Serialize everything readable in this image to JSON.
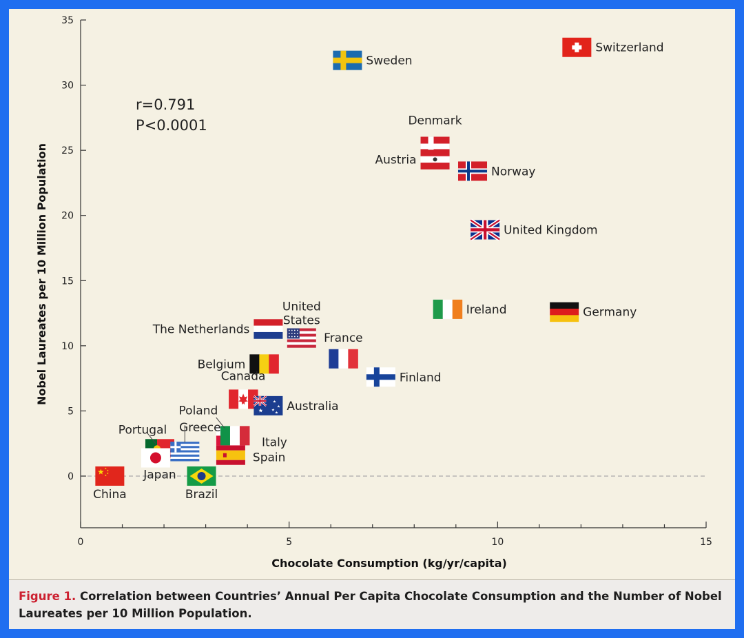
{
  "chart_data": {
    "type": "scatter",
    "xlabel": "Chocolate Consumption (kg/yr/capita)",
    "ylabel": "Nobel Laureates per 10 Million Population",
    "xlim": [
      0,
      15
    ],
    "ylim": [
      -4,
      35
    ],
    "xticks": [
      0,
      5,
      10,
      15
    ],
    "yticks": [
      0,
      5,
      10,
      15,
      20,
      25,
      30,
      35
    ],
    "reference_line_y": 0,
    "stats": {
      "r": "r=0.791",
      "p": "P<0.0001"
    },
    "points": [
      {
        "name": "Switzerland",
        "label": [
          "Switzerland"
        ],
        "x": 11.9,
        "y": 32.9,
        "flag": "switzerland"
      },
      {
        "name": "Sweden",
        "label": [
          "Sweden"
        ],
        "x": 6.4,
        "y": 31.9,
        "flag": "sweden"
      },
      {
        "name": "Denmark",
        "label": [
          "Denmark"
        ],
        "x": 8.5,
        "y": 25.3,
        "flag": "denmark"
      },
      {
        "name": "Austria",
        "label": [
          "Austria"
        ],
        "x": 8.5,
        "y": 24.3,
        "flag": "austria"
      },
      {
        "name": "Norway",
        "label": [
          "Norway"
        ],
        "x": 9.4,
        "y": 23.4,
        "flag": "norway"
      },
      {
        "name": "United Kingdom",
        "label": [
          "United Kingdom"
        ],
        "x": 9.7,
        "y": 18.9,
        "flag": "uk"
      },
      {
        "name": "Ireland",
        "label": [
          "Ireland"
        ],
        "x": 8.8,
        "y": 12.8,
        "flag": "ireland"
      },
      {
        "name": "Germany",
        "label": [
          "Germany"
        ],
        "x": 11.6,
        "y": 12.6,
        "flag": "germany"
      },
      {
        "name": "The Netherlands",
        "label": [
          "The Netherlands"
        ],
        "x": 4.5,
        "y": 11.3,
        "flag": "netherlands"
      },
      {
        "name": "United States",
        "label": [
          "United",
          "States"
        ],
        "x": 5.3,
        "y": 10.6,
        "flag": "usa"
      },
      {
        "name": "France",
        "label": [
          "France"
        ],
        "x": 6.3,
        "y": 9.0,
        "flag": "france"
      },
      {
        "name": "Belgium",
        "label": [
          "Belgium"
        ],
        "x": 4.4,
        "y": 8.6,
        "flag": "belgium"
      },
      {
        "name": "Finland",
        "label": [
          "Finland"
        ],
        "x": 7.2,
        "y": 7.6,
        "flag": "finland"
      },
      {
        "name": "Canada",
        "label": [
          "Canada"
        ],
        "x": 3.9,
        "y": 5.9,
        "flag": "canada"
      },
      {
        "name": "Australia",
        "label": [
          "Australia"
        ],
        "x": 4.5,
        "y": 5.4,
        "flag": "australia"
      },
      {
        "name": "Poland",
        "label": [
          "Poland"
        ],
        "x": 3.6,
        "y": 3.1,
        "flag": "poland"
      },
      {
        "name": "Italy",
        "label": [
          "Italy"
        ],
        "x": 3.7,
        "y": 3.1,
        "flag": "italy"
      },
      {
        "name": "Portugal",
        "label": [
          "Portugal"
        ],
        "x": 1.9,
        "y": 2.1,
        "flag": "portugal"
      },
      {
        "name": "Greece",
        "label": [
          "Greece"
        ],
        "x": 2.5,
        "y": 1.9,
        "flag": "greece"
      },
      {
        "name": "Spain",
        "label": [
          "Spain"
        ],
        "x": 3.6,
        "y": 1.6,
        "flag": "spain"
      },
      {
        "name": "Japan",
        "label": [
          "Japan"
        ],
        "x": 1.8,
        "y": 1.4,
        "flag": "japan"
      },
      {
        "name": "China",
        "label": [
          "China"
        ],
        "x": 0.7,
        "y": 0.0,
        "flag": "china"
      },
      {
        "name": "Brazil",
        "label": [
          "Brazil"
        ],
        "x": 2.9,
        "y": 0.0,
        "flag": "brazil"
      }
    ]
  },
  "caption": {
    "figure_label": "Figure 1.",
    "text": " Correlation between Countries’ Annual Per Capita Chocolate Consumption and the Number of Nobel Laureates per 10 Million Population."
  }
}
